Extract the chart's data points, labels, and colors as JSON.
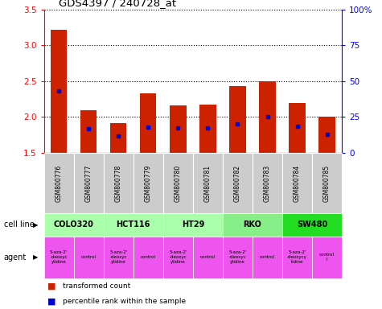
{
  "title": "GDS4397 / 240728_at",
  "samples": [
    "GSM800776",
    "GSM800777",
    "GSM800778",
    "GSM800779",
    "GSM800780",
    "GSM800781",
    "GSM800782",
    "GSM800783",
    "GSM800784",
    "GSM800785"
  ],
  "transformed_counts": [
    3.22,
    2.1,
    1.92,
    2.33,
    2.16,
    2.17,
    2.43,
    2.5,
    2.2,
    2.01
  ],
  "percentile_ranks": [
    43,
    17,
    12,
    18,
    17.5,
    17.5,
    20,
    25,
    18.5,
    13
  ],
  "ylim": [
    1.5,
    3.5
  ],
  "yticks": [
    1.5,
    2.0,
    2.5,
    3.0,
    3.5
  ],
  "y2ticks": [
    0,
    25,
    50,
    75,
    100
  ],
  "y2lim": [
    0,
    100
  ],
  "bar_color": "#cc2200",
  "percentile_color": "#0000cc",
  "bar_width": 0.55,
  "gsm_bg_color": "#cccccc",
  "cell_line_groups": [
    {
      "name": "COLO320",
      "start": 0,
      "end": 2,
      "color": "#aaffaa"
    },
    {
      "name": "HCT116",
      "start": 2,
      "end": 4,
      "color": "#aaffaa"
    },
    {
      "name": "HT29",
      "start": 4,
      "end": 6,
      "color": "#aaffaa"
    },
    {
      "name": "RKO",
      "start": 6,
      "end": 8,
      "color": "#88ee88"
    },
    {
      "name": "SW480",
      "start": 8,
      "end": 10,
      "color": "#22dd22"
    }
  ],
  "agent_labels": [
    "5-aza-2'\n-deoxyc\nytidine",
    "control",
    "5-aza-2'\n-deoxyc\nytidine",
    "control",
    "5-aza-2'\n-deoxyc\nytidine",
    "control",
    "5-aza-2'\n-deoxyc\nytidine",
    "control",
    "5-aza-2'\n-deoxycy\ntidine",
    "control\nl"
  ],
  "agent_color": "#ee55ee",
  "cell_line_label": "cell line",
  "agent_label": "agent",
  "legend_items": [
    {
      "label": "transformed count",
      "color": "#cc2200"
    },
    {
      "label": "percentile rank within the sample",
      "color": "#0000cc"
    }
  ]
}
